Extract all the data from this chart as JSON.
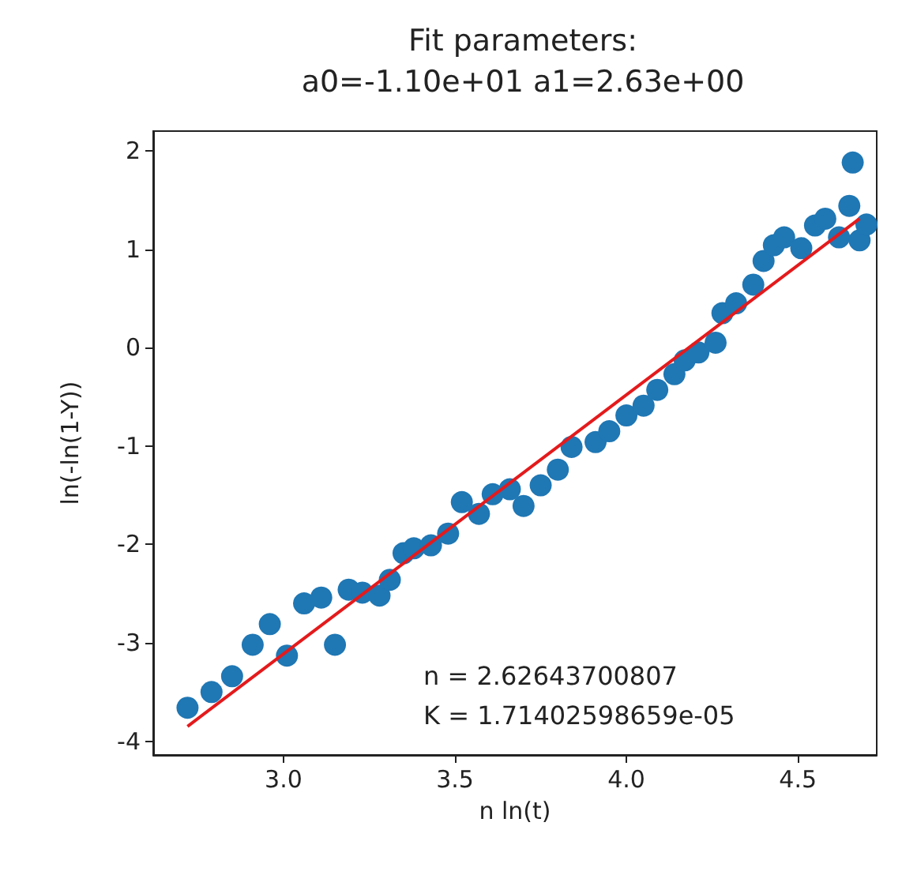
{
  "chart_data": {
    "type": "scatter",
    "title": "Fit parameters:\na0=-1.10e+01 a1=2.63e+00",
    "xlabel": "n ln(t)",
    "ylabel": "ln(-ln(1-Y))",
    "xlim": [
      2.62,
      4.73
    ],
    "ylim": [
      -4.14,
      2.2
    ],
    "xticks": [
      {
        "value": 3,
        "label": "3.0"
      },
      {
        "value": 3.5,
        "label": "3.5"
      },
      {
        "value": 4,
        "label": "4.0"
      },
      {
        "value": 4.5,
        "label": "4.5"
      }
    ],
    "yticks": [
      -4,
      -3,
      -2,
      -1,
      0,
      1,
      2
    ],
    "grid": false,
    "marker": "circle",
    "annotations": [
      "n = 2.62643700807",
      "K = 1.71402598659e-05"
    ],
    "series": [
      {
        "color": "#1f77b4",
        "x": [
          2.72,
          2.79,
          2.85,
          2.91,
          2.96,
          3.01,
          3.06,
          3.11,
          3.15,
          3.19,
          3.23,
          3.28,
          3.31,
          3.35,
          3.38,
          3.43,
          3.48,
          3.52,
          3.57,
          3.61,
          3.66,
          3.7,
          3.75,
          3.8,
          3.84,
          3.91,
          3.95,
          4.0,
          4.05,
          4.09,
          4.14,
          4.17,
          4.21,
          4.26,
          4.28,
          4.32,
          4.37,
          4.4,
          4.43,
          4.46,
          4.51,
          4.55,
          4.58,
          4.62,
          4.66,
          4.65,
          4.68,
          4.7
        ],
        "values": [
          -3.66,
          -3.5,
          -3.34,
          -3.02,
          -2.81,
          -3.13,
          -2.6,
          -2.54,
          -3.02,
          -2.46,
          -2.49,
          -2.52,
          -2.36,
          -2.09,
          -2.04,
          -2.01,
          -1.89,
          -1.57,
          -1.69,
          -1.49,
          -1.44,
          -1.61,
          -1.4,
          -1.24,
          -1.01,
          -0.96,
          -0.85,
          -0.69,
          -0.59,
          -0.43,
          -0.27,
          -0.13,
          -0.05,
          0.05,
          0.35,
          0.45,
          0.64,
          0.88,
          1.04,
          1.12,
          1.01,
          1.24,
          1.31,
          1.12,
          1.88,
          1.44,
          1.09,
          1.25
        ]
      },
      {
        "type": "line",
        "color": "#e41a1c",
        "marker": "none",
        "x": [
          2.72,
          4.68
        ],
        "values": [
          -3.85,
          1.31
        ]
      }
    ]
  }
}
